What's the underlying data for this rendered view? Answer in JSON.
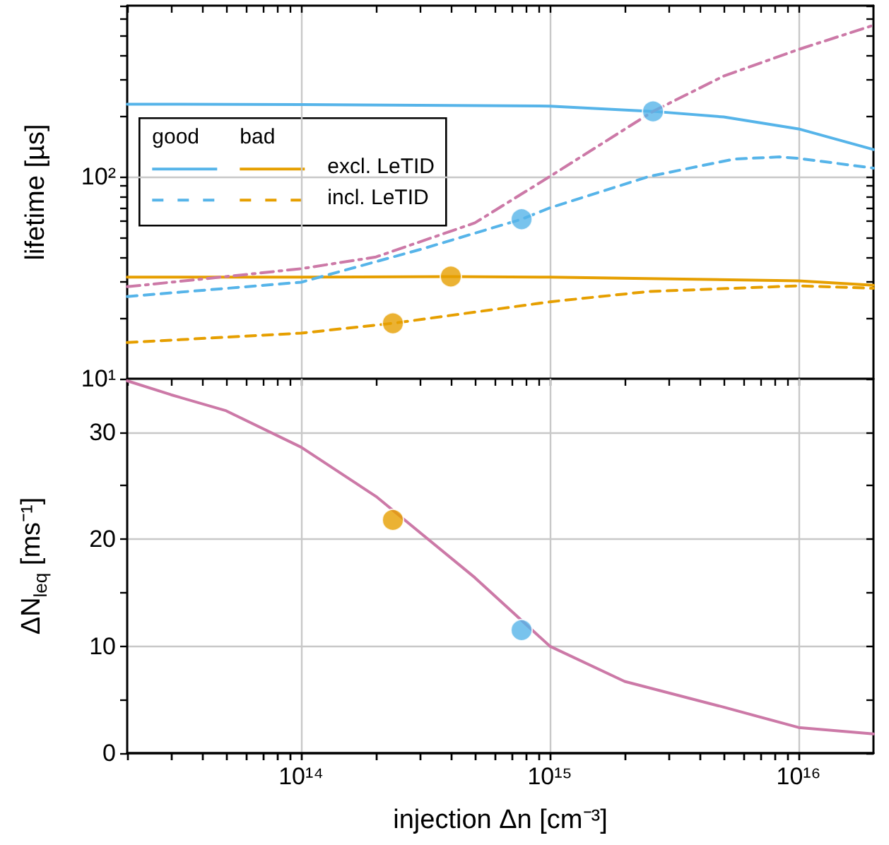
{
  "chart_data": [
    {
      "type": "line",
      "ylabel": "lifetime [µs]",
      "log": "xy",
      "xlim": [
        20000000000000.0,
        2e+16
      ],
      "ylim": [
        10,
        700
      ],
      "xticks": [
        {
          "value": 20000000000000.0,
          "label": null
        },
        {
          "value": 30000000000000.0,
          "label": null
        },
        {
          "value": 40000000000000.0,
          "label": null
        },
        {
          "value": 50000000000000.0,
          "label": null
        },
        {
          "value": 60000000000000.0,
          "label": null
        },
        {
          "value": 70000000000000.0,
          "label": null
        },
        {
          "value": 80000000000000.0,
          "label": null
        },
        {
          "value": 90000000000000.0,
          "label": null
        },
        {
          "value": 100000000000000.0,
          "label": null
        },
        {
          "value": 200000000000000.0,
          "label": null
        },
        {
          "value": 300000000000000.0,
          "label": null
        },
        {
          "value": 400000000000000.0,
          "label": null
        },
        {
          "value": 500000000000000.0,
          "label": null
        },
        {
          "value": 600000000000000.0,
          "label": null
        },
        {
          "value": 700000000000000.0,
          "label": null
        },
        {
          "value": 800000000000000.0,
          "label": null
        },
        {
          "value": 900000000000000.0,
          "label": null
        },
        {
          "value": 1000000000000000.0,
          "label": null
        },
        {
          "value": 2000000000000000.0,
          "label": null
        },
        {
          "value": 3000000000000000.0,
          "label": null
        },
        {
          "value": 4000000000000000.0,
          "label": null
        },
        {
          "value": 5000000000000000.0,
          "label": null
        },
        {
          "value": 6000000000000000.0,
          "label": null
        },
        {
          "value": 7000000000000000.0,
          "label": null
        },
        {
          "value": 8000000000000000.0,
          "label": null
        },
        {
          "value": 9000000000000000.0,
          "label": null
        },
        {
          "value": 1e+16,
          "label": null
        },
        {
          "value": 2e+16,
          "label": null
        }
      ],
      "yticks": [
        {
          "value": 10,
          "label": "10¹"
        },
        {
          "value": 20,
          "label": null
        },
        {
          "value": 30,
          "label": null
        },
        {
          "value": 40,
          "label": null
        },
        {
          "value": 50,
          "label": null
        },
        {
          "value": 60,
          "label": null
        },
        {
          "value": 70,
          "label": null
        },
        {
          "value": 80,
          "label": null
        },
        {
          "value": 90,
          "label": null
        },
        {
          "value": 100,
          "label": "10²"
        },
        {
          "value": 200,
          "label": null
        },
        {
          "value": 300,
          "label": null
        },
        {
          "value": 400,
          "label": null
        },
        {
          "value": 500,
          "label": null
        },
        {
          "value": 600,
          "label": null
        },
        {
          "value": 700,
          "label": null
        }
      ],
      "tick_labels": "y",
      "grid": true,
      "legend": "top left",
      "marker": "none",
      "annotations": [
        "good",
        "bad"
      ],
      "series": [
        {
          "color": "#56b4e9",
          "line_style": "solid",
          "x": [
            20000000000000.0,
            100000000000000.0,
            1000000000000000.0,
            2600000000000000.0,
            5000000000000000.0,
            1e+16,
            2e+16
          ],
          "values": [
            228,
            227,
            223,
            210,
            197,
            172,
            136
          ]
        },
        {
          "name": "excl. LeTID",
          "color": "#e69f00",
          "line_style": "solid",
          "x": [
            20000000000000.0,
            100000000000000.0,
            400000000000000.0,
            1000000000000000.0,
            1e+16,
            2e+16
          ],
          "values": [
            31.8,
            31.8,
            32,
            31.8,
            30.5,
            29
          ]
        },
        {
          "color": "#56b4e9",
          "line_style": "dashed",
          "x": [
            20000000000000.0,
            100000000000000.0,
            310000000000000.0,
            770000000000000.0,
            1000000000000000.0,
            2500000000000000.0,
            5500000000000000.0,
            8400000000000000.0,
            1e+16,
            2e+16
          ],
          "values": [
            25.5,
            30,
            44,
            61.5,
            70,
            100,
            122,
            125,
            123,
            110
          ]
        },
        {
          "name": "incl. LeTID",
          "color": "#e69f00",
          "line_style": "dashed",
          "x": [
            20000000000000.0,
            100000000000000.0,
            234000000000000.0,
            1000000000000000.0,
            2500000000000000.0,
            1e+16,
            2e+16
          ],
          "values": [
            15.1,
            16.8,
            18.8,
            24,
            27,
            28.8,
            28
          ]
        },
        {
          "color": "#cc79a7",
          "line_style": "dashdot",
          "x": [
            20000000000000.0,
            50000000000000.0,
            100000000000000.0,
            200000000000000.0,
            500000000000000.0,
            1000000000000000.0,
            2600000000000000.0,
            5000000000000000.0,
            1e+16,
            2e+16
          ],
          "values": [
            28.5,
            32,
            35,
            40,
            59,
            100,
            210,
            314,
            425,
            560
          ]
        },
        {
          "type": "scatter",
          "marker": "circle",
          "x": [
            2600000000000000.0,
            770000000000000.0,
            400000000000000.0,
            234000000000000.0
          ],
          "values": [
            210,
            61.5,
            32,
            18.8
          ],
          "colors": [
            "#56b4e9",
            "#56b4e9",
            "#e69f00",
            "#e69f00"
          ]
        }
      ]
    },
    {
      "type": "line",
      "xlabel": "injection Δn [cm⁻³]",
      "ylabel": "ΔN$_{leq}$ [ms⁻¹]",
      "log": "x",
      "xlim": [
        20000000000000.0,
        2e+16
      ],
      "ylim": [
        0,
        35
      ],
      "xticks": [
        {
          "value": 20000000000000.0,
          "label": null
        },
        {
          "value": 30000000000000.0,
          "label": null
        },
        {
          "value": 40000000000000.0,
          "label": null
        },
        {
          "value": 50000000000000.0,
          "label": null
        },
        {
          "value": 60000000000000.0,
          "label": null
        },
        {
          "value": 70000000000000.0,
          "label": null
        },
        {
          "value": 80000000000000.0,
          "label": null
        },
        {
          "value": 90000000000000.0,
          "label": null
        },
        {
          "value": 100000000000000.0,
          "label": "10¹⁴"
        },
        {
          "value": 200000000000000.0,
          "label": null
        },
        {
          "value": 300000000000000.0,
          "label": null
        },
        {
          "value": 400000000000000.0,
          "label": null
        },
        {
          "value": 500000000000000.0,
          "label": null
        },
        {
          "value": 600000000000000.0,
          "label": null
        },
        {
          "value": 700000000000000.0,
          "label": null
        },
        {
          "value": 800000000000000.0,
          "label": null
        },
        {
          "value": 900000000000000.0,
          "label": null
        },
        {
          "value": 1000000000000000.0,
          "label": "10¹⁵"
        },
        {
          "value": 2000000000000000.0,
          "label": null
        },
        {
          "value": 3000000000000000.0,
          "label": null
        },
        {
          "value": 4000000000000000.0,
          "label": null
        },
        {
          "value": 5000000000000000.0,
          "label": null
        },
        {
          "value": 6000000000000000.0,
          "label": null
        },
        {
          "value": 7000000000000000.0,
          "label": null
        },
        {
          "value": 8000000000000000.0,
          "label": null
        },
        {
          "value": 9000000000000000.0,
          "label": null
        },
        {
          "value": 1e+16,
          "label": "10¹⁶"
        },
        {
          "value": 2e+16,
          "label": null
        }
      ],
      "yticks": [
        0,
        {
          "value": 5,
          "label": null
        },
        10,
        {
          "value": 15,
          "label": null
        },
        20,
        {
          "value": 25,
          "label": null
        },
        30
      ],
      "grid": true,
      "marker": "none",
      "series": [
        {
          "color": "#cc79a7",
          "line_style": "solid",
          "x": [
            20000000000000.0,
            30000000000000.0,
            50000000000000.0,
            100000000000000.0,
            200000000000000.0,
            500000000000000.0,
            1000000000000000.0,
            2000000000000000.0,
            5000000000000000.0,
            1e+16,
            2e+16
          ],
          "values": [
            34.8,
            33.5,
            32,
            28.6,
            24,
            16.4,
            10,
            6.7,
            4.3,
            2.4,
            1.8
          ]
        },
        {
          "type": "scatter",
          "marker": "circle",
          "x": [
            234000000000000.0,
            770000000000000.0
          ],
          "values": [
            21.8,
            11.5
          ],
          "colors": [
            "#e69f00",
            "#56b4e9"
          ]
        }
      ]
    }
  ]
}
